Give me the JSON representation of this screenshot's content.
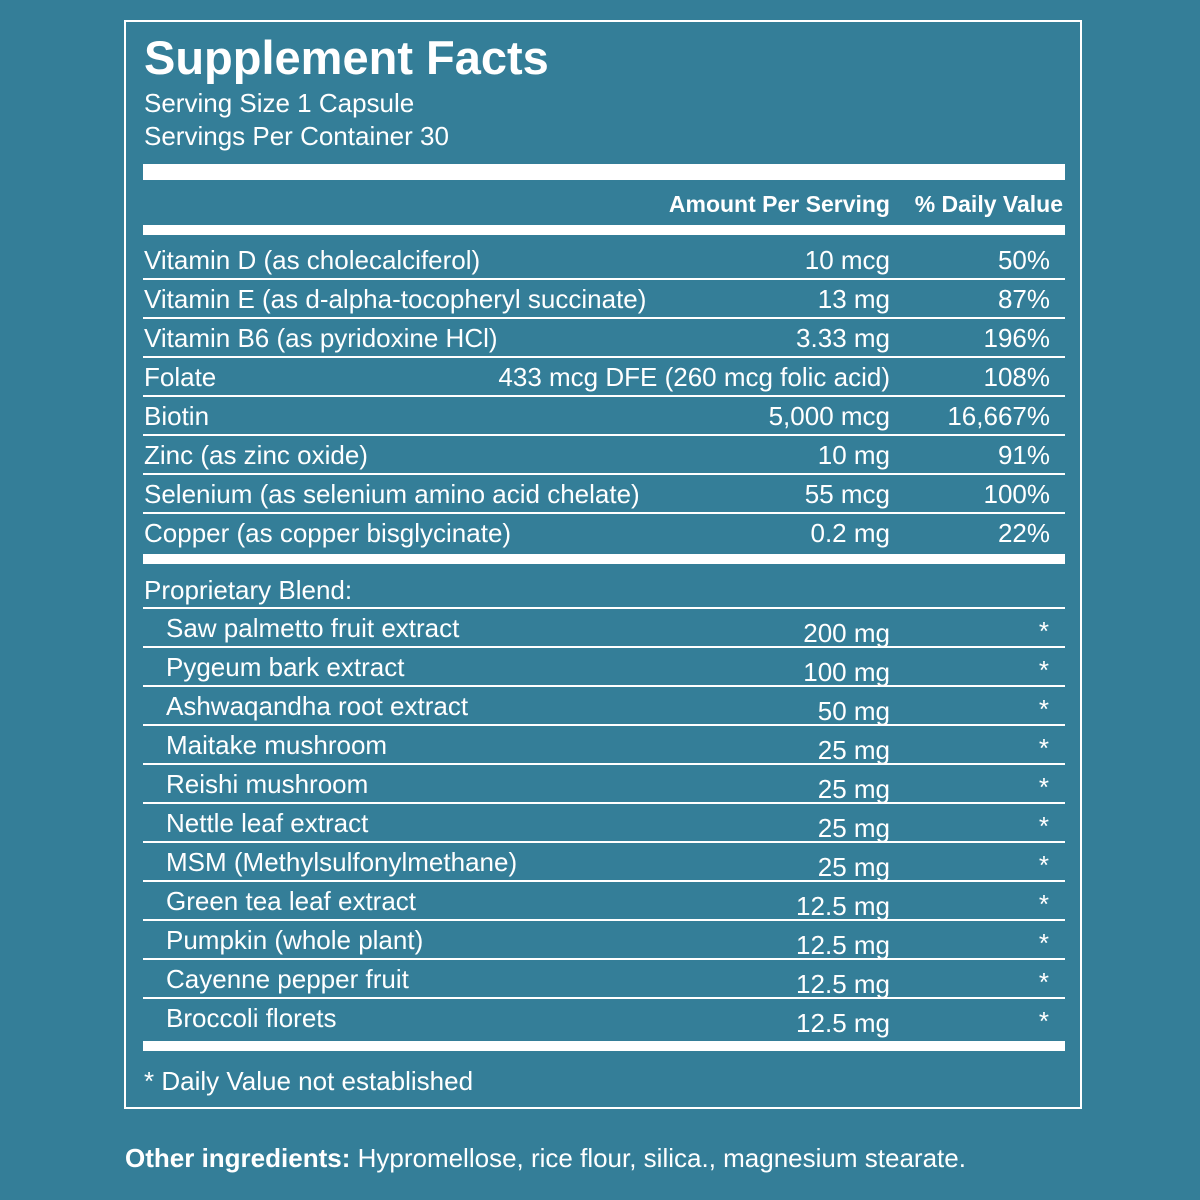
{
  "panel": {
    "title": "Supplement Facts",
    "serving_size": "Serving Size 1 Capsule",
    "servings_per_container": "Servings Per Container 30",
    "col_amount": "Amount Per Serving",
    "col_dv": "% Daily Value"
  },
  "nutrients": [
    {
      "name": "Vitamin D (as cholecalciferol)",
      "amount": "10 mcg",
      "dv": "50%"
    },
    {
      "name": "Vitamin E (as d-alpha-tocopheryl succinate)",
      "amount": "13 mg",
      "dv": "87%"
    },
    {
      "name": "Vitamin B6 (as pyridoxine HCl)",
      "amount": "3.33 mg",
      "dv": "196%"
    },
    {
      "name": "Folate",
      "amount": "433 mcg DFE (260 mcg folic acid)",
      "dv": "108%"
    },
    {
      "name": "Biotin",
      "amount": "5,000 mcg",
      "dv": "16,667%"
    },
    {
      "name": "Zinc (as zinc oxide)",
      "amount": "10 mg",
      "dv": "91%"
    },
    {
      "name": "Selenium (as selenium amino acid chelate)",
      "amount": "55 mcg",
      "dv": "100%"
    },
    {
      "name": "Copper (as copper bisglycinate)",
      "amount": "0.2 mg",
      "dv": "22%"
    }
  ],
  "blend": {
    "title": "Proprietary Blend:",
    "items": [
      {
        "name": "Saw palmetto fruit extract",
        "amount": "200 mg",
        "dv": "*"
      },
      {
        "name": "Pygeum bark extract",
        "amount": "100 mg",
        "dv": "*"
      },
      {
        "name": "Ashwaqandha root extract",
        "amount": "50 mg",
        "dv": "*"
      },
      {
        "name": "Maitake mushroom",
        "amount": "25 mg",
        "dv": "*"
      },
      {
        "name": "Reishi mushroom",
        "amount": "25 mg",
        "dv": "*"
      },
      {
        "name": "Nettle leaf extract",
        "amount": "25 mg",
        "dv": "*"
      },
      {
        "name": "MSM (Methylsulfonylmethane)",
        "amount": "25 mg",
        "dv": "*"
      },
      {
        "name": "Green tea leaf extract",
        "amount": "12.5 mg",
        "dv": "*"
      },
      {
        "name": "Pumpkin (whole plant)",
        "amount": "12.5 mg",
        "dv": "*"
      },
      {
        "name": "Cayenne pepper fruit",
        "amount": "12.5 mg",
        "dv": "*"
      },
      {
        "name": "Broccoli florets",
        "amount": "12.5 mg",
        "dv": "*"
      }
    ]
  },
  "footnote": "* Daily Value not established",
  "other_ingredients": {
    "label": "Other ingredients:",
    "text": " Hypromellose, rice flour, silica., magnesium stearate."
  },
  "colors": {
    "background": "#347e98",
    "foreground": "#ffffff"
  }
}
